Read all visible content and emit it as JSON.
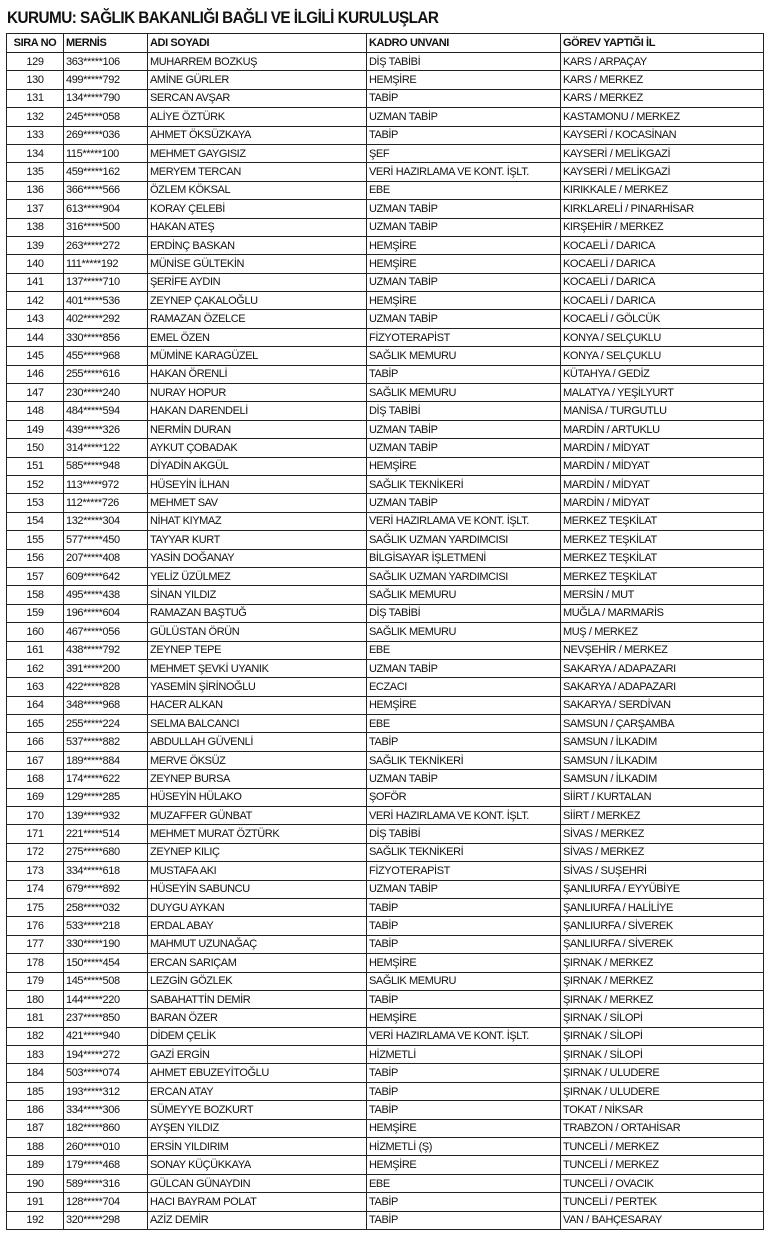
{
  "title": "KURUMU: SAĞLIK BAKANLIĞI BAĞLI VE İLGİLİ KURULUŞLAR",
  "columns": [
    "SIRA NO",
    "MERNİS",
    "ADI SOYADI",
    "KADRO UNVANI",
    "GÖREV YAPTIĞI İL"
  ],
  "rows": [
    [
      "129",
      "363*****106",
      "MUHARREM BOZKUŞ",
      "DİŞ TABİBİ",
      "KARS / ARPAÇAY"
    ],
    [
      "130",
      "499*****792",
      "AMİNE GÜRLER",
      "HEMŞİRE",
      "KARS / MERKEZ"
    ],
    [
      "131",
      "134*****790",
      "SERCAN AVŞAR",
      "TABİP",
      "KARS / MERKEZ"
    ],
    [
      "132",
      "245*****058",
      "ALİYE ÖZTÜRK",
      "UZMAN TABİP",
      "KASTAMONU / MERKEZ"
    ],
    [
      "133",
      "269*****036",
      "AHMET ÖKSÜZKAYA",
      "TABİP",
      "KAYSERİ / KOCASİNAN"
    ],
    [
      "134",
      "115*****100",
      "MEHMET GAYGISIZ",
      "ŞEF",
      "KAYSERİ / MELİKGAZİ"
    ],
    [
      "135",
      "459*****162",
      "MERYEM TERCAN",
      "VERİ HAZIRLAMA VE KONT. İŞLT.",
      "KAYSERİ / MELİKGAZİ"
    ],
    [
      "136",
      "366*****566",
      "ÖZLEM KÖKSAL",
      "EBE",
      "KIRIKKALE / MERKEZ"
    ],
    [
      "137",
      "613*****904",
      "KORAY ÇELEBİ",
      "UZMAN TABİP",
      "KIRKLARELİ / PINARHİSAR"
    ],
    [
      "138",
      "316*****500",
      "HAKAN ATEŞ",
      "UZMAN TABİP",
      "KIRŞEHİR / MERKEZ"
    ],
    [
      "139",
      "263*****272",
      "ERDİNÇ BASKAN",
      "HEMŞİRE",
      "KOCAELİ / DARICA"
    ],
    [
      "140",
      "111*****192",
      "MÜNİSE GÜLTEKİN",
      "HEMŞİRE",
      "KOCAELİ / DARICA"
    ],
    [
      "141",
      "137*****710",
      "ŞERİFE AYDIN",
      "UZMAN TABİP",
      "KOCAELİ / DARICA"
    ],
    [
      "142",
      "401*****536",
      "ZEYNEP ÇAKALOĞLU",
      "HEMŞİRE",
      "KOCAELİ / DARICA"
    ],
    [
      "143",
      "402*****292",
      "RAMAZAN ÖZELCE",
      "UZMAN TABİP",
      "KOCAELİ / GÖLCÜK"
    ],
    [
      "144",
      "330*****856",
      "EMEL ÖZEN",
      "FİZYOTERAPİST",
      "KONYA / SELÇUKLU"
    ],
    [
      "145",
      "455*****968",
      "MÜMİNE KARAGÜZEL",
      "SAĞLIK MEMURU",
      "KONYA / SELÇUKLU"
    ],
    [
      "146",
      "255*****616",
      "HAKAN ÖRENLİ",
      "TABİP",
      "KÜTAHYA / GEDİZ"
    ],
    [
      "147",
      "230*****240",
      "NURAY HOPUR",
      "SAĞLIK MEMURU",
      "MALATYA / YEŞİLYURT"
    ],
    [
      "148",
      "484*****594",
      "HAKAN DARENDELİ",
      "DİŞ TABİBİ",
      "MANİSA / TURGUTLU"
    ],
    [
      "149",
      "439*****326",
      "NERMİN DURAN",
      "UZMAN TABİP",
      "MARDİN / ARTUKLU"
    ],
    [
      "150",
      "314*****122",
      "AYKUT ÇOBADAK",
      "UZMAN TABİP",
      "MARDİN / MİDYAT"
    ],
    [
      "151",
      "585*****948",
      "DİYADİN AKGÜL",
      "HEMŞİRE",
      "MARDİN / MİDYAT"
    ],
    [
      "152",
      "113*****972",
      "HÜSEYİN İLHAN",
      "SAĞLIK TEKNİKERİ",
      "MARDİN / MİDYAT"
    ],
    [
      "153",
      "112*****726",
      "MEHMET SAV",
      "UZMAN TABİP",
      "MARDİN / MİDYAT"
    ],
    [
      "154",
      "132*****304",
      "NİHAT KIYMAZ",
      "VERİ HAZIRLAMA VE KONT. İŞLT.",
      "MERKEZ TEŞKİLAT"
    ],
    [
      "155",
      "577*****450",
      "TAYYAR KURT",
      "SAĞLIK UZMAN YARDIMCISI",
      "MERKEZ TEŞKİLAT"
    ],
    [
      "156",
      "207*****408",
      "YASİN DOĞANAY",
      "BİLGİSAYAR İŞLETMENİ",
      "MERKEZ TEŞKİLAT"
    ],
    [
      "157",
      "609*****642",
      "YELİZ ÜZÜLMEZ",
      "SAĞLIK UZMAN YARDIMCISI",
      "MERKEZ TEŞKİLAT"
    ],
    [
      "158",
      "495*****438",
      "SİNAN YILDIZ",
      "SAĞLIK MEMURU",
      "MERSİN / MUT"
    ],
    [
      "159",
      "196*****604",
      "RAMAZAN BAŞTUĞ",
      "DİŞ TABİBİ",
      "MUĞLA / MARMARİS"
    ],
    [
      "160",
      "467*****056",
      "GÜLÜSTAN ÖRÜN",
      "SAĞLIK MEMURU",
      "MUŞ / MERKEZ"
    ],
    [
      "161",
      "438*****792",
      "ZEYNEP TEPE",
      "EBE",
      "NEVŞEHİR / MERKEZ"
    ],
    [
      "162",
      "391*****200",
      "MEHMET ŞEVKİ UYANIK",
      "UZMAN TABİP",
      "SAKARYA / ADAPAZARI"
    ],
    [
      "163",
      "422*****828",
      "YASEMİN ŞİRİNOĞLU",
      "ECZACI",
      "SAKARYA / ADAPAZARI"
    ],
    [
      "164",
      "348*****968",
      "HACER ALKAN",
      "HEMŞİRE",
      "SAKARYA / SERDİVAN"
    ],
    [
      "165",
      "255*****224",
      "SELMA BALCANCI",
      "EBE",
      "SAMSUN / ÇARŞAMBA"
    ],
    [
      "166",
      "537*****882",
      "ABDULLAH GÜVENLİ",
      "TABİP",
      "SAMSUN / İLKADIM"
    ],
    [
      "167",
      "189*****884",
      "MERVE ÖKSÜZ",
      "SAĞLIK TEKNİKERİ",
      "SAMSUN / İLKADIM"
    ],
    [
      "168",
      "174*****622",
      "ZEYNEP BURSA",
      "UZMAN TABİP",
      "SAMSUN / İLKADIM"
    ],
    [
      "169",
      "129*****285",
      "HÜSEYİN HÜLAKO",
      "ŞOFÖR",
      "SİİRT / KURTALAN"
    ],
    [
      "170",
      "139*****932",
      "MUZAFFER GÜNBAT",
      "VERİ HAZIRLAMA VE KONT. İŞLT.",
      "SİİRT / MERKEZ"
    ],
    [
      "171",
      "221*****514",
      "MEHMET MURAT ÖZTÜRK",
      "DİŞ TABİBİ",
      "SİVAS / MERKEZ"
    ],
    [
      "172",
      "275*****680",
      "ZEYNEP KILIÇ",
      "SAĞLIK TEKNİKERİ",
      "SİVAS / MERKEZ"
    ],
    [
      "173",
      "334*****618",
      "MUSTAFA AKI",
      "FİZYOTERAPİST",
      "SİVAS / SUŞEHRİ"
    ],
    [
      "174",
      "679*****892",
      "HÜSEYİN SABUNCU",
      "UZMAN TABİP",
      "ŞANLIURFA / EYYÜBİYE"
    ],
    [
      "175",
      "258*****032",
      "DUYGU AYKAN",
      "TABİP",
      "ŞANLIURFA / HALİLİYE"
    ],
    [
      "176",
      "533*****218",
      "ERDAL ABAY",
      "TABİP",
      "ŞANLIURFA / SİVEREK"
    ],
    [
      "177",
      "330*****190",
      "MAHMUT UZUNAĞAÇ",
      "TABİP",
      "ŞANLIURFA / SİVEREK"
    ],
    [
      "178",
      "150*****454",
      "ERCAN SARIÇAM",
      "HEMŞİRE",
      "ŞIRNAK / MERKEZ"
    ],
    [
      "179",
      "145*****508",
      "LEZGİN GÖZLEK",
      "SAĞLIK MEMURU",
      "ŞIRNAK / MERKEZ"
    ],
    [
      "180",
      "144*****220",
      "SABAHATTİN DEMİR",
      "TABİP",
      "ŞIRNAK / MERKEZ"
    ],
    [
      "181",
      "237*****850",
      "BARAN ÖZER",
      "HEMŞİRE",
      "ŞIRNAK / SİLOPİ"
    ],
    [
      "182",
      "421*****940",
      "DİDEM ÇELİK",
      "VERİ HAZIRLAMA VE KONT. İŞLT.",
      "ŞIRNAK / SİLOPİ"
    ],
    [
      "183",
      "194*****272",
      "GAZİ ERGİN",
      "HİZMETLİ",
      "ŞIRNAK / SİLOPİ"
    ],
    [
      "184",
      "503*****074",
      "AHMET EBUZEYİTOĞLU",
      "TABİP",
      "ŞIRNAK / ULUDERE"
    ],
    [
      "185",
      "193*****312",
      "ERCAN ATAY",
      "TABİP",
      "ŞIRNAK / ULUDERE"
    ],
    [
      "186",
      "334*****306",
      "SÜMEYYE BOZKURT",
      "TABİP",
      "TOKAT / NİKSAR"
    ],
    [
      "187",
      "182*****860",
      "AYŞEN YILDIZ",
      "HEMŞİRE",
      "TRABZON / ORTAHİSAR"
    ],
    [
      "188",
      "260*****010",
      "ERSİN YILDIRIM",
      "HİZMETLİ (Ş)",
      "TUNCELİ / MERKEZ"
    ],
    [
      "189",
      "179*****468",
      "SONAY KÜÇÜKKAYA",
      "HEMŞİRE",
      "TUNCELİ / MERKEZ"
    ],
    [
      "190",
      "589*****316",
      "GÜLCAN GÜNAYDIN",
      "EBE",
      "TUNCELİ / OVACIK"
    ],
    [
      "191",
      "128*****704",
      "HACI BAYRAM POLAT",
      "TABİP",
      "TUNCELİ / PERTEK"
    ],
    [
      "192",
      "320*****298",
      "AZİZ DEMİR",
      "TABİP",
      "VAN / BAHÇESARAY"
    ]
  ]
}
